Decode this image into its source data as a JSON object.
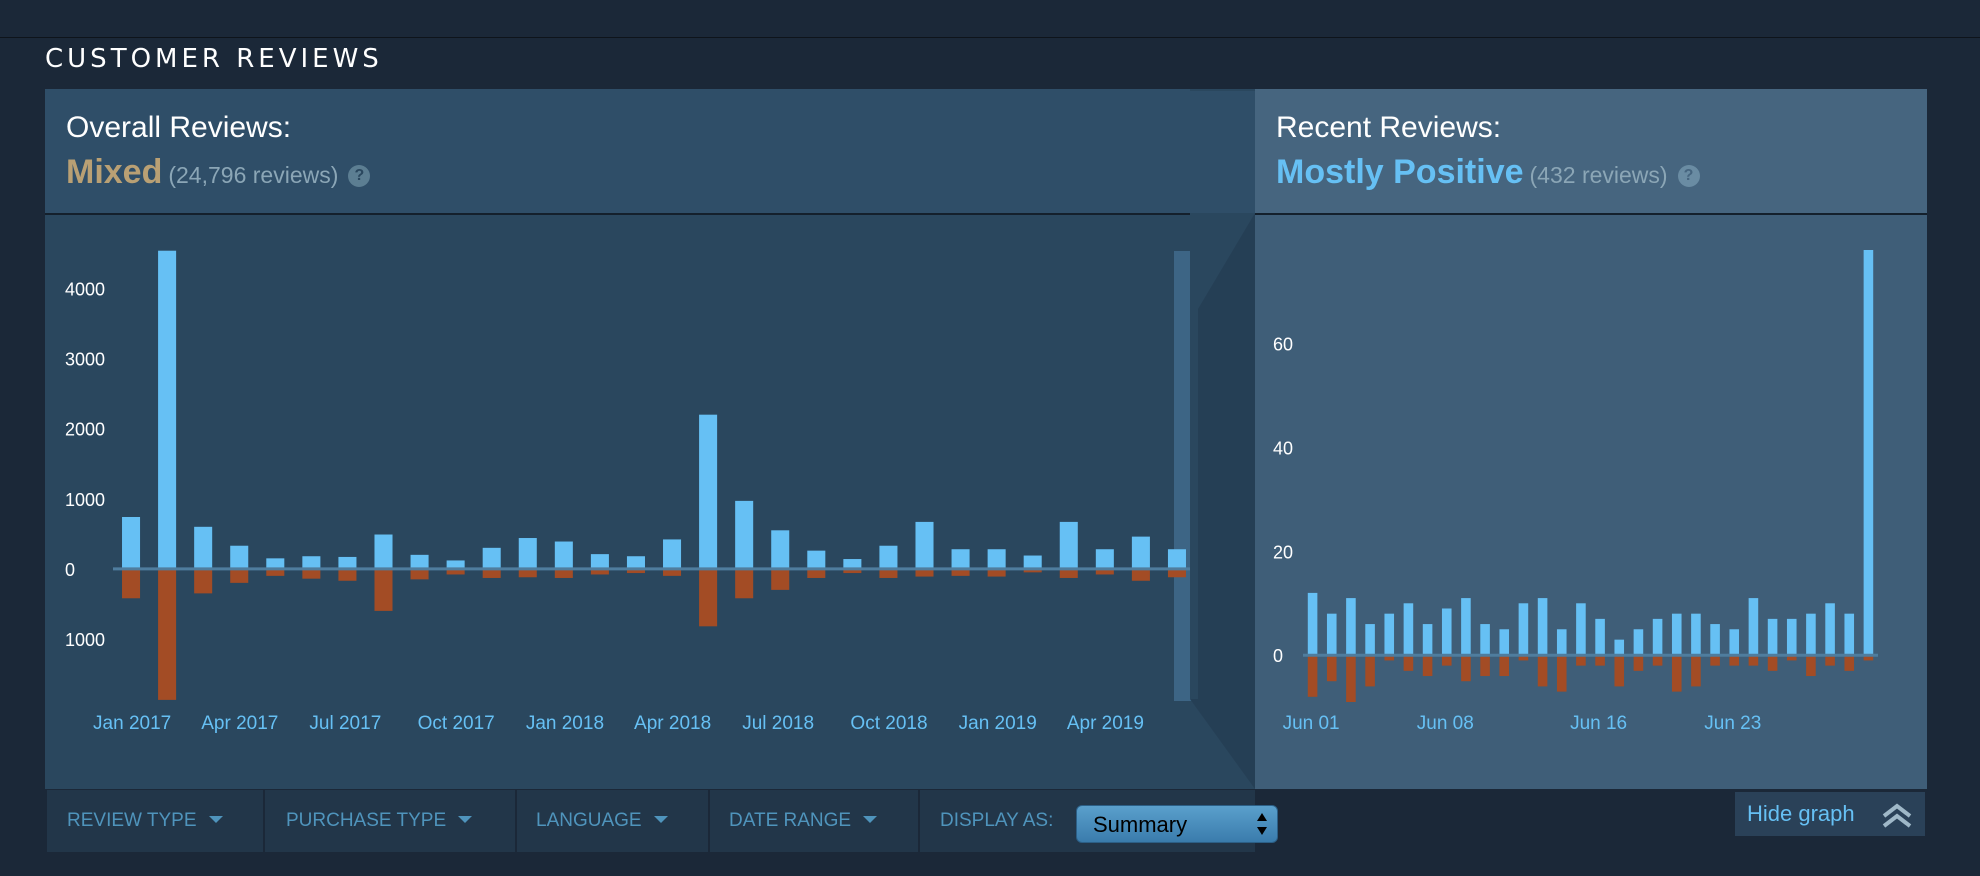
{
  "section_title": "CUSTOMER REVIEWS",
  "overall": {
    "label": "Overall Reviews:",
    "summary": "Mixed",
    "count_text": "(24,796 reviews)"
  },
  "recent": {
    "label": "Recent Reviews:",
    "summary": "Mostly Positive",
    "count_text": "(432 reviews)"
  },
  "colors": {
    "positive": "#66c0f4",
    "negative": "#a34c25",
    "mixed": "#b9a074"
  },
  "filters": {
    "review_type": "REVIEW TYPE",
    "purchase_type": "PURCHASE TYPE",
    "language": "LANGUAGE",
    "date_range": "DATE RANGE",
    "display_as": "DISPLAY AS:",
    "display_value": "Summary"
  },
  "hide_graph": "Hide graph",
  "chart_data": [
    {
      "type": "bar",
      "ylabels": [
        "4000",
        "3000",
        "2000",
        "1000",
        "0",
        "1000"
      ],
      "y_ticks": [
        4000,
        3000,
        2000,
        1000,
        0,
        -1000
      ],
      "ylim": [
        -1900,
        4550
      ],
      "x_ticks": [
        {
          "index": 0,
          "label": "Jan 2017"
        },
        {
          "index": 3,
          "label": "Apr 2017"
        },
        {
          "index": 6,
          "label": "Jul 2017"
        },
        {
          "index": 9,
          "label": "Oct 2017"
        },
        {
          "index": 12,
          "label": "Jan 2018"
        },
        {
          "index": 15,
          "label": "Apr 2018"
        },
        {
          "index": 18,
          "label": "Jul 2018"
        },
        {
          "index": 21,
          "label": "Oct 2018"
        },
        {
          "index": 24,
          "label": "Jan 2019"
        },
        {
          "index": 27,
          "label": "Apr 2019"
        }
      ],
      "positive": [
        740,
        4540,
        600,
        330,
        150,
        180,
        170,
        490,
        200,
        120,
        300,
        440,
        390,
        210,
        180,
        420,
        2200,
        970,
        550,
        260,
        140,
        330,
        670,
        280,
        280,
        190,
        670,
        280,
        460,
        280
      ],
      "negative": [
        420,
        1870,
        350,
        200,
        100,
        140,
        170,
        600,
        150,
        80,
        130,
        120,
        130,
        80,
        60,
        100,
        820,
        420,
        300,
        130,
        60,
        130,
        110,
        100,
        110,
        50,
        130,
        80,
        170,
        120
      ],
      "series": [
        {
          "name": "positive",
          "values": [
            740,
            4540,
            600,
            330,
            150,
            180,
            170,
            490,
            200,
            120,
            300,
            440,
            390,
            210,
            180,
            420,
            2200,
            970,
            550,
            260,
            140,
            330,
            670,
            280,
            280,
            190,
            670,
            280,
            460,
            280
          ]
        },
        {
          "name": "negative",
          "values": [
            -420,
            -1870,
            -350,
            -200,
            -100,
            -140,
            -170,
            -600,
            -150,
            -80,
            -130,
            -120,
            -130,
            -80,
            -60,
            -100,
            -820,
            -420,
            -300,
            -130,
            -60,
            -130,
            -110,
            -100,
            -110,
            -50,
            -130,
            -80,
            -170,
            -120
          ]
        }
      ]
    },
    {
      "type": "bar",
      "ylabels": [
        "60",
        "40",
        "20",
        "0"
      ],
      "y_ticks": [
        60,
        40,
        20,
        0
      ],
      "ylim": [
        -9,
        78
      ],
      "x_ticks": [
        {
          "index": 0,
          "label": "Jun 01"
        },
        {
          "index": 7,
          "label": "Jun 08"
        },
        {
          "index": 15,
          "label": "Jun 16"
        },
        {
          "index": 22,
          "label": "Jun 23"
        }
      ],
      "positive": [
        12,
        8,
        11,
        6,
        8,
        10,
        6,
        9,
        11,
        6,
        5,
        10,
        11,
        5,
        10,
        7,
        3,
        5,
        7,
        8,
        8,
        6,
        5,
        11,
        7,
        7,
        8,
        10,
        8,
        78
      ],
      "negative": [
        8,
        5,
        9,
        6,
        1,
        3,
        4,
        2,
        5,
        4,
        4,
        1,
        6,
        7,
        2,
        2,
        6,
        3,
        2,
        7,
        6,
        2,
        2,
        2,
        3,
        1,
        4,
        2,
        3,
        1
      ],
      "series": [
        {
          "name": "positive",
          "values": [
            12,
            8,
            11,
            6,
            8,
            10,
            6,
            9,
            11,
            6,
            5,
            10,
            11,
            5,
            10,
            7,
            3,
            5,
            7,
            8,
            8,
            6,
            5,
            11,
            7,
            7,
            8,
            10,
            8,
            78
          ]
        },
        {
          "name": "negative",
          "values": [
            -8,
            -5,
            -9,
            -6,
            -1,
            -3,
            -4,
            -2,
            -5,
            -4,
            -4,
            -1,
            -6,
            -7,
            -2,
            -2,
            -6,
            -3,
            -2,
            -7,
            -6,
            -2,
            -2,
            -2,
            -3,
            -1,
            -4,
            -2,
            -3,
            -1
          ]
        }
      ]
    }
  ]
}
